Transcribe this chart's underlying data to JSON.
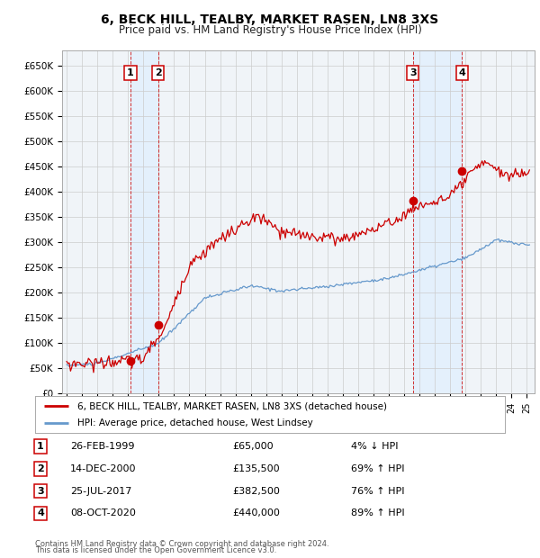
{
  "title": "6, BECK HILL, TEALBY, MARKET RASEN, LN8 3XS",
  "subtitle": "Price paid vs. HM Land Registry's House Price Index (HPI)",
  "ylabel_ticks": [
    "£0",
    "£50K",
    "£100K",
    "£150K",
    "£200K",
    "£250K",
    "£300K",
    "£350K",
    "£400K",
    "£450K",
    "£500K",
    "£550K",
    "£600K",
    "£650K"
  ],
  "ytick_values": [
    0,
    50000,
    100000,
    150000,
    200000,
    250000,
    300000,
    350000,
    400000,
    450000,
    500000,
    550000,
    600000,
    650000
  ],
  "ylim": [
    0,
    680000
  ],
  "xlim_start": 1994.7,
  "xlim_end": 2025.5,
  "sale_dates": [
    1999.15,
    2000.96,
    2017.57,
    2020.77
  ],
  "sale_prices": [
    65000,
    135500,
    382500,
    440000
  ],
  "sale_labels": [
    "1",
    "2",
    "3",
    "4"
  ],
  "sale_date_strs": [
    "26-FEB-1999",
    "14-DEC-2000",
    "25-JUL-2017",
    "08-OCT-2020"
  ],
  "sale_price_strs": [
    "£65,000",
    "£135,500",
    "£382,500",
    "£440,000"
  ],
  "sale_hpi_strs": [
    "4% ↓ HPI",
    "69% ↑ HPI",
    "76% ↑ HPI",
    "89% ↑ HPI"
  ],
  "legend_label_red": "6, BECK HILL, TEALBY, MARKET RASEN, LN8 3XS (detached house)",
  "legend_label_blue": "HPI: Average price, detached house, West Lindsey",
  "footer1": "Contains HM Land Registry data © Crown copyright and database right 2024.",
  "footer2": "This data is licensed under the Open Government Licence v3.0.",
  "red_color": "#cc0000",
  "blue_color": "#6699cc",
  "vline_color": "#cc0000",
  "box_bg_color": "#ddeeff",
  "grid_color": "#cccccc",
  "background_color": "#f0f4f8"
}
